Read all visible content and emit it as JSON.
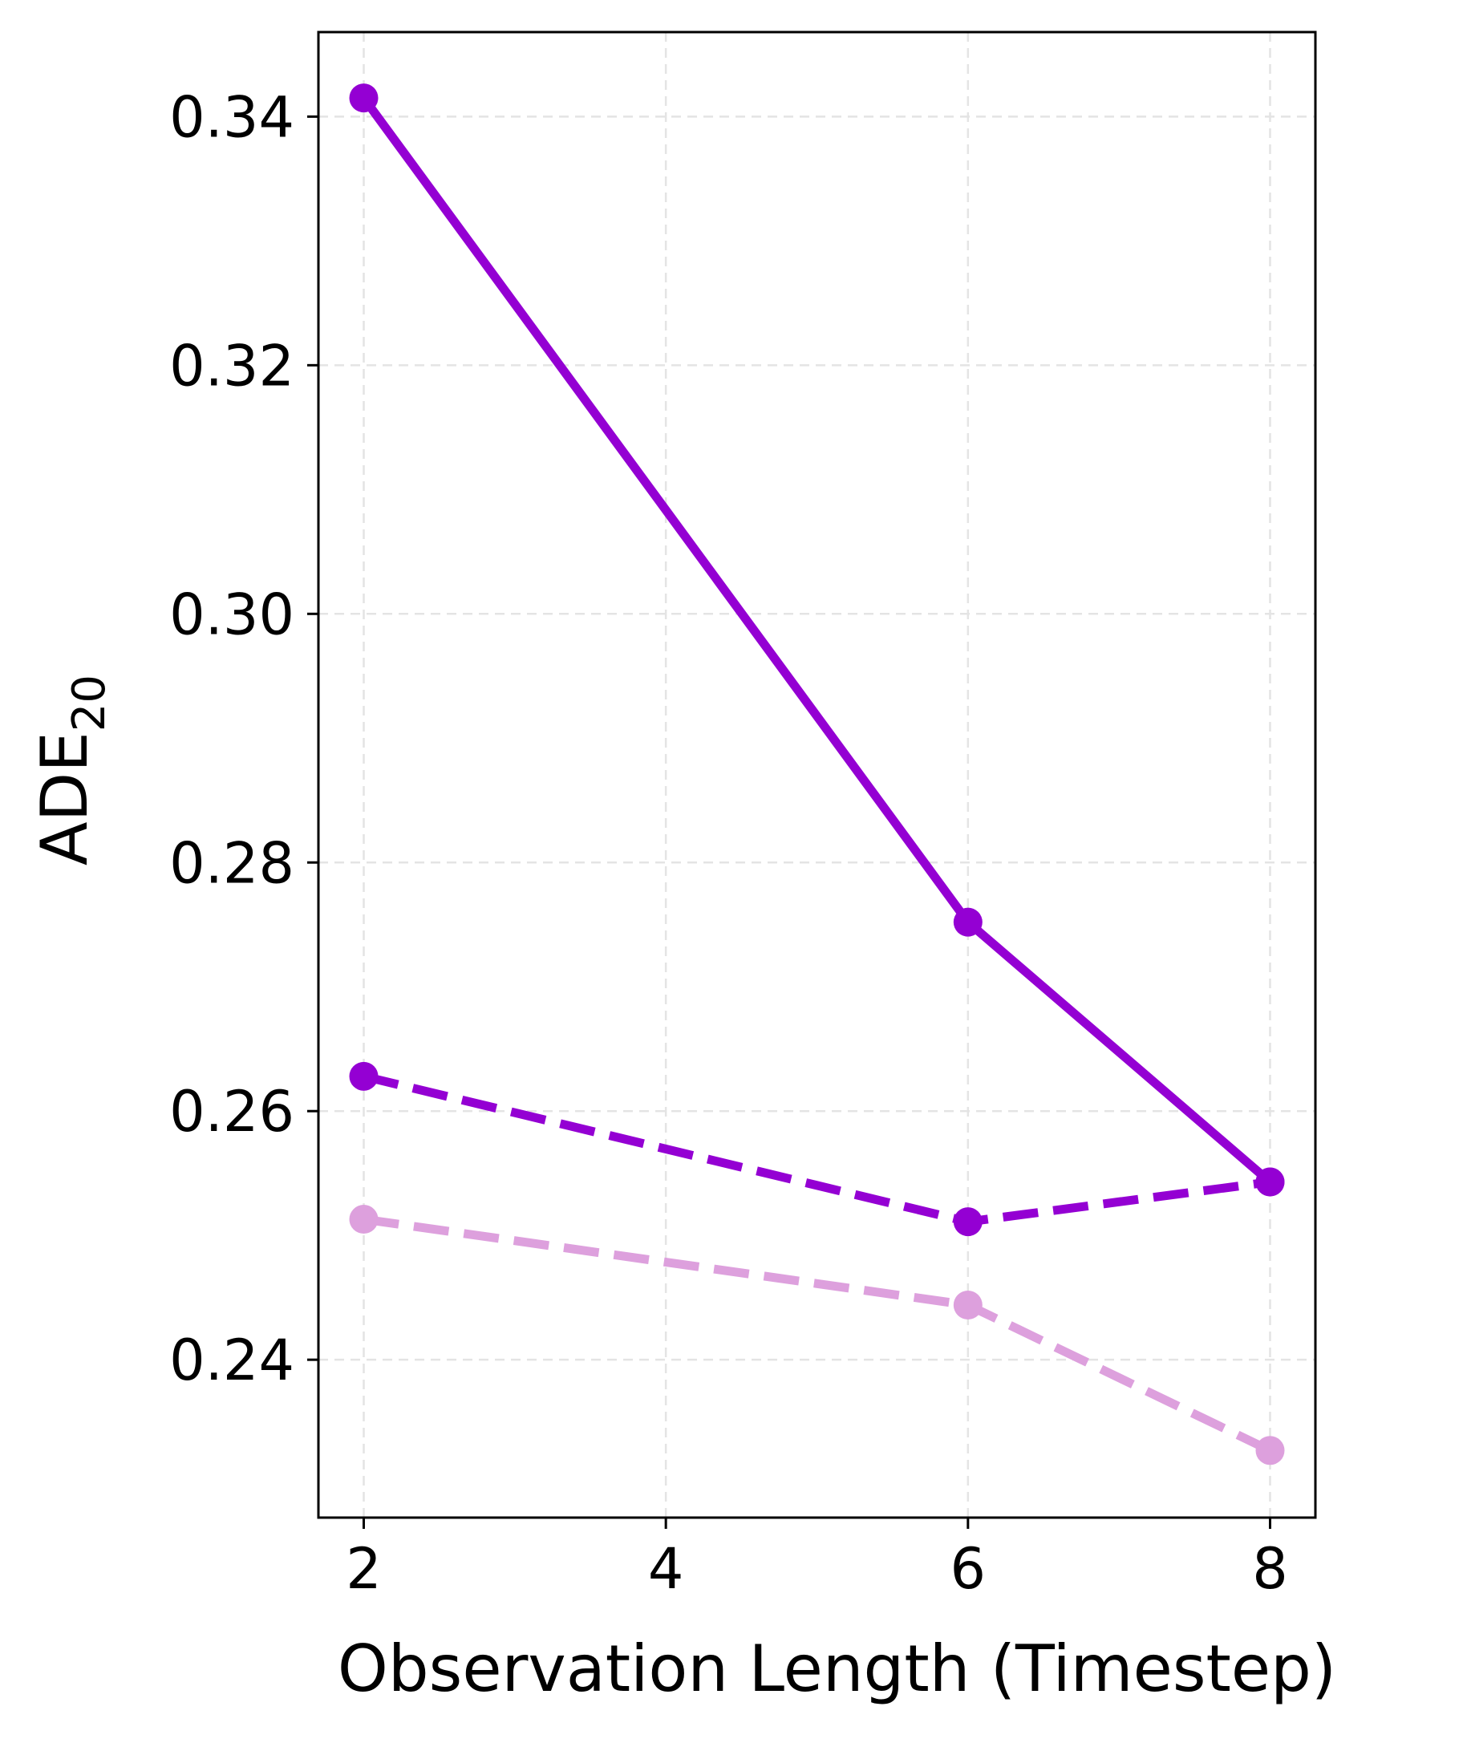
{
  "chart_data": {
    "type": "line",
    "title": "",
    "xlabel": "Observation Length (Timestep)",
    "ylabel": "ADE",
    "ylabel_subscript": "20",
    "x": [
      2,
      6,
      8
    ],
    "xticks": [
      2,
      4,
      6,
      8
    ],
    "xtick_labels": [
      "2",
      "4",
      "6",
      "8"
    ],
    "yticks": [
      0.24,
      0.26,
      0.28,
      0.3,
      0.32,
      0.34
    ],
    "ytick_labels": [
      "0.24",
      "0.26",
      "0.28",
      "0.30",
      "0.32",
      "0.34"
    ],
    "xlim": [
      1.7,
      8.3
    ],
    "ylim": [
      0.2273,
      0.3468
    ],
    "grid": true,
    "series": [
      {
        "values": [
          0.3415,
          0.2752,
          0.2543
        ],
        "color": "#9400D3",
        "style": "solid"
      },
      {
        "values": [
          0.2628,
          0.2511,
          0.2543
        ],
        "color": "#9400D3",
        "style": "dashed"
      },
      {
        "values": [
          0.2513,
          0.2444,
          0.2327
        ],
        "color": "#DDA0DD",
        "style": "dashed"
      }
    ]
  }
}
